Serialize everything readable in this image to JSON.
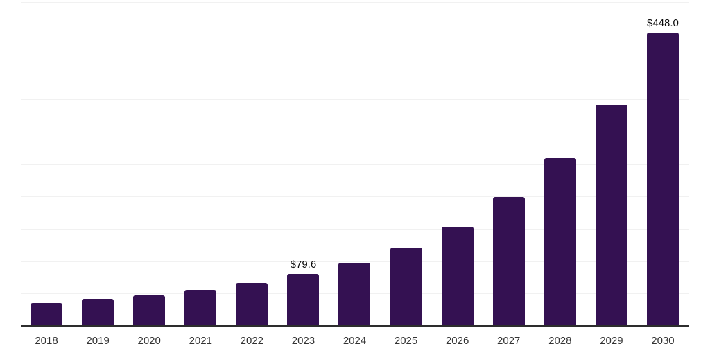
{
  "chart_data": {
    "type": "bar",
    "categories": [
      "2018",
      "2019",
      "2020",
      "2021",
      "2022",
      "2023",
      "2024",
      "2025",
      "2026",
      "2027",
      "2028",
      "2029",
      "2030"
    ],
    "values": [
      34.6,
      40.9,
      46.2,
      55.2,
      65.8,
      79.6,
      96.8,
      119.8,
      151.8,
      197.4,
      256.8,
      337.9,
      448.0
    ],
    "data_labels": [
      "",
      "",
      "",
      "",
      "",
      "$79.6",
      "",
      "",
      "",
      "",
      "",
      "",
      "$448.0"
    ],
    "title": "",
    "xlabel": "",
    "ylabel": "",
    "ylim": [
      0,
      495
    ],
    "grid": "horizontal-only",
    "gridline_count": 10,
    "legend_position": "none",
    "colors": {
      "bar": "#341152",
      "gridline": "#f1f1f1",
      "axis_line": "#2d2d2d",
      "tick_label": "#333333",
      "value_label": "#0b0b0b",
      "background": "#ffffff"
    }
  }
}
